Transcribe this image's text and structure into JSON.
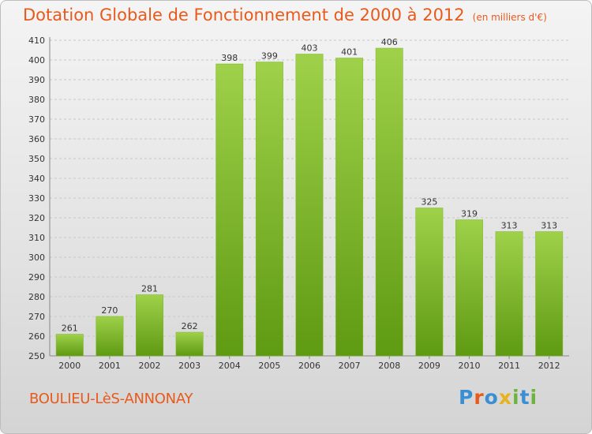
{
  "header": {
    "title": "Dotation Globale de Fonctionnement de 2000 à 2012",
    "unit": "(en milliers d'€)"
  },
  "footer": {
    "commune": "BOULIEU-LèS-ANNONAY",
    "logo_text": "Proxiti"
  },
  "colors": {
    "bar_top": "#9fd14a",
    "bar_bottom": "#5e9a12",
    "accent": "#e85a1b",
    "grid": "#c8c8c8"
  },
  "chart_data": {
    "type": "bar",
    "title": "Dotation Globale de Fonctionnement de 2000 à 2012",
    "subtitle": "(en milliers d'€)",
    "xlabel": "",
    "ylabel": "",
    "categories": [
      "2000",
      "2001",
      "2002",
      "2003",
      "2004",
      "2005",
      "2006",
      "2007",
      "2008",
      "2009",
      "2010",
      "2011",
      "2012"
    ],
    "values": [
      261,
      270,
      281,
      262,
      398,
      399,
      403,
      401,
      406,
      325,
      319,
      313,
      313
    ],
    "ylim": [
      250,
      410
    ],
    "yticks": [
      250,
      260,
      270,
      280,
      290,
      300,
      310,
      320,
      330,
      340,
      350,
      360,
      370,
      380,
      390,
      400,
      410
    ],
    "grid": true,
    "data_labels": true
  }
}
